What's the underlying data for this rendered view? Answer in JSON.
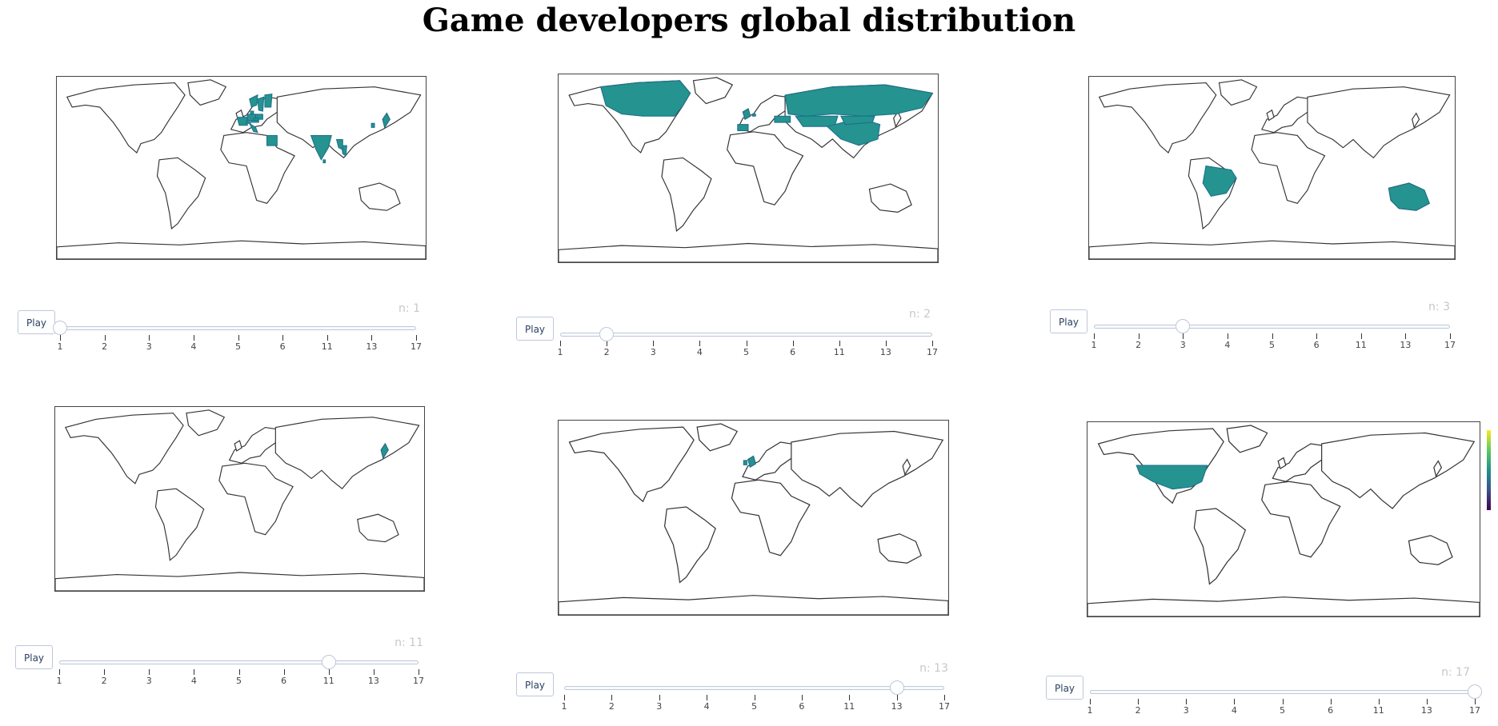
{
  "title": "Game developers global distribution",
  "slider": {
    "steps": [
      "1",
      "2",
      "3",
      "4",
      "5",
      "6",
      "11",
      "13",
      "17"
    ],
    "play_label": "Play",
    "prefix": "n: "
  },
  "panels": [
    {
      "value": "1",
      "highlight": [
        "Finland",
        "Sweden",
        "Norway",
        "Denmark",
        "Germany",
        "Poland",
        "Czechia",
        "Austria",
        "France",
        "Switzerland",
        "Egypt",
        "Italy",
        "India",
        "Sri Lanka",
        "Thailand",
        "Myanmar",
        "Japan",
        "South Korea"
      ]
    },
    {
      "value": "2",
      "highlight": [
        "Canada",
        "United Kingdom",
        "Netherlands",
        "Russia",
        "Ukraine",
        "Kazakhstan",
        "China",
        "Mongolia",
        "Spain"
      ]
    },
    {
      "value": "3",
      "highlight": [
        "Brazil",
        "Australia"
      ]
    },
    {
      "value": "11",
      "highlight": [
        "Japan"
      ]
    },
    {
      "value": "13",
      "highlight": [
        "United Kingdom",
        "Ireland"
      ]
    },
    {
      "value": "17",
      "highlight": [
        "United States"
      ]
    }
  ],
  "colors": {
    "highlight": "#25938f",
    "outline": "#333333",
    "slider_border": "#bec8d9",
    "play_text": "#2a3f5f",
    "current_value": "#c8c8c8"
  },
  "colorscale": "viridis"
}
